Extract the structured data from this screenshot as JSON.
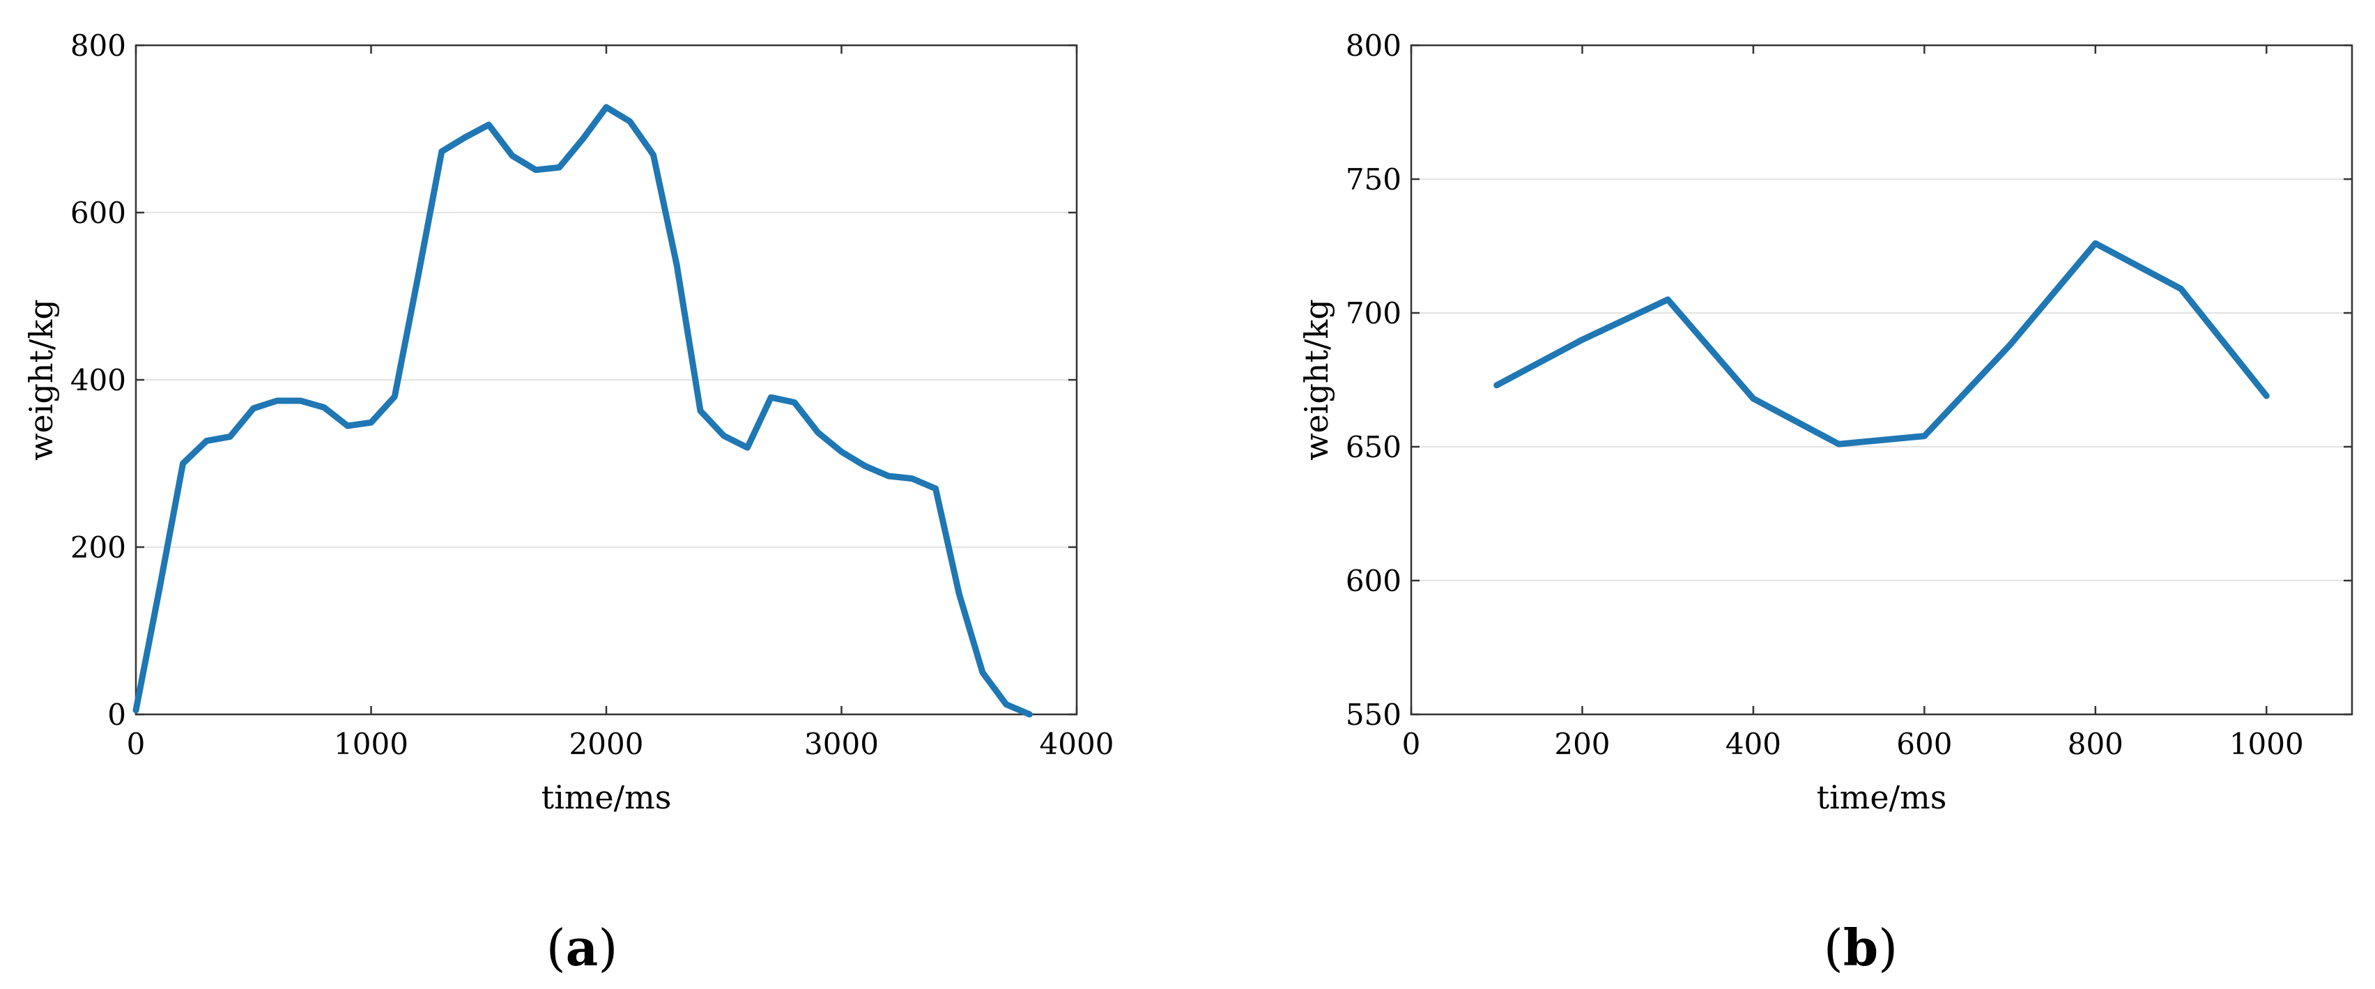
{
  "chart_data": [
    {
      "type": "line",
      "panel_label": "a",
      "xlabel": "time/ms",
      "ylabel": "weight/kg",
      "xlim": [
        0,
        4000
      ],
      "ylim": [
        0,
        800
      ],
      "xticks": [
        0,
        1000,
        2000,
        3000,
        4000
      ],
      "yticks": [
        0,
        200,
        400,
        600,
        800
      ],
      "grid": "horizontal",
      "line_color": "#1f77b4",
      "series": [
        {
          "x": [
            0,
            100,
            200,
            300,
            400,
            500,
            600,
            700,
            800,
            900,
            1000,
            1100,
            1200,
            1300,
            1400,
            1500,
            1600,
            1700,
            1800,
            1900,
            2000,
            2100,
            2200,
            2300,
            2400,
            2500,
            2600,
            2700,
            2800,
            2900,
            3000,
            3100,
            3200,
            3300,
            3400,
            3500,
            3600,
            3700,
            3800
          ],
          "y": [
            5,
            150,
            300,
            327,
            332,
            366,
            375,
            375,
            367,
            345,
            349,
            380,
            524,
            673,
            690,
            705,
            668,
            651,
            654,
            688,
            726,
            709,
            669,
            537,
            363,
            333,
            319,
            379,
            373,
            337,
            314,
            297,
            285,
            282,
            270,
            144,
            50,
            12,
            0
          ]
        }
      ]
    },
    {
      "type": "line",
      "panel_label": "b",
      "xlabel": "time/ms",
      "ylabel": "weight/kg",
      "xlim": [
        0,
        1100
      ],
      "ylim": [
        550,
        800
      ],
      "xticks": [
        0,
        200,
        400,
        600,
        800,
        1000
      ],
      "yticks": [
        550,
        600,
        650,
        700,
        750,
        800
      ],
      "grid": "horizontal",
      "line_color": "#1f77b4",
      "series": [
        {
          "x": [
            100,
            200,
            300,
            400,
            500,
            600,
            700,
            800,
            900,
            1000
          ],
          "y": [
            673,
            690,
            705,
            668,
            651,
            654,
            688,
            726,
            709,
            669
          ]
        }
      ]
    }
  ]
}
